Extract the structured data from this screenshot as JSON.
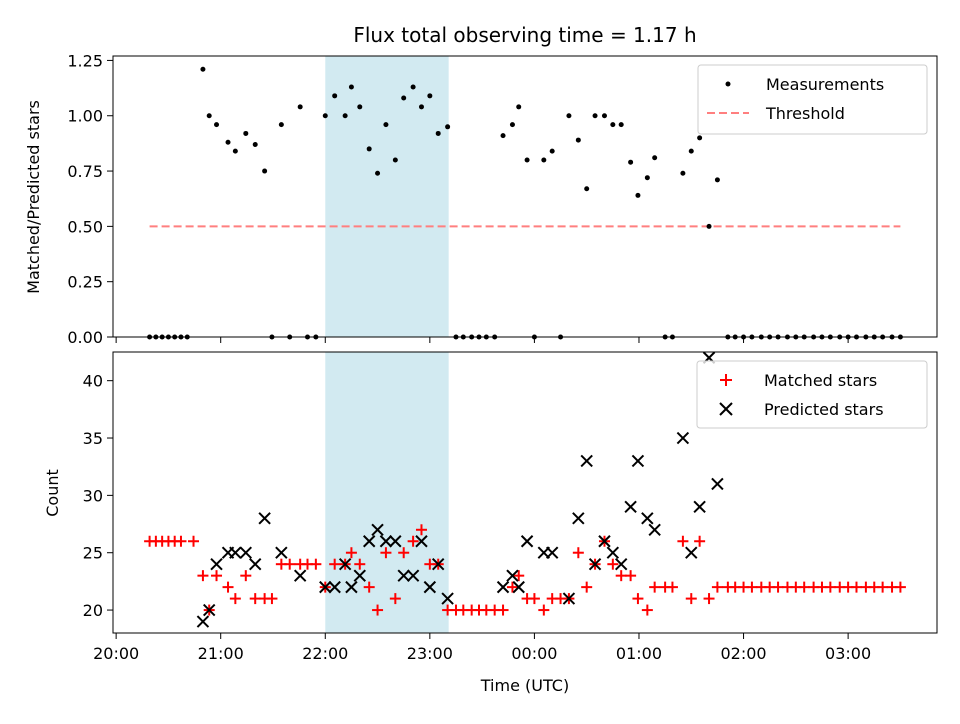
{
  "chart_data": {
    "title": "Flux total observing time = 1.17 h",
    "xlabel": "Time (UTC)",
    "x_range_hours": [
      19.97,
      27.85
    ],
    "x_ticks": [
      {
        "t": 20,
        "label": "20:00"
      },
      {
        "t": 21,
        "label": "21:00"
      },
      {
        "t": 22,
        "label": "22:00"
      },
      {
        "t": 23,
        "label": "23:00"
      },
      {
        "t": 24,
        "label": "00:00"
      },
      {
        "t": 25,
        "label": "01:00"
      },
      {
        "t": 26,
        "label": "02:00"
      },
      {
        "t": 27,
        "label": "03:00"
      }
    ],
    "highlight_span": {
      "start": 22.0,
      "end": 23.18,
      "color": "#add8e6"
    },
    "top_panel": {
      "type": "scatter",
      "ylabel": "Matched/Predicted stars",
      "ylim": [
        0,
        1.27
      ],
      "y_ticks": [
        {
          "v": 0,
          "label": "0.00"
        },
        {
          "v": 0.25,
          "label": "0.25"
        },
        {
          "v": 0.5,
          "label": "0.50"
        },
        {
          "v": 0.75,
          "label": "0.75"
        },
        {
          "v": 1.0,
          "label": "1.00"
        },
        {
          "v": 1.25,
          "label": "1.25"
        }
      ],
      "legend_position": "top-right",
      "series": [
        {
          "name": "Measurements",
          "color": "#000000",
          "points": [
            [
              20.32,
              0
            ],
            [
              20.38,
              0
            ],
            [
              20.44,
              0
            ],
            [
              20.5,
              0
            ],
            [
              20.56,
              0
            ],
            [
              20.62,
              0
            ],
            [
              20.68,
              0
            ],
            [
              20.83,
              1.21
            ],
            [
              20.89,
              1.0
            ],
            [
              20.96,
              0.96
            ],
            [
              21.07,
              0.88
            ],
            [
              21.14,
              0.84
            ],
            [
              21.24,
              0.92
            ],
            [
              21.33,
              0.87
            ],
            [
              21.42,
              0.75
            ],
            [
              21.49,
              0
            ],
            [
              21.58,
              0.96
            ],
            [
              21.66,
              0
            ],
            [
              21.76,
              1.04
            ],
            [
              21.83,
              0
            ],
            [
              21.91,
              0
            ],
            [
              22.0,
              1.0
            ],
            [
              22.09,
              1.09
            ],
            [
              22.19,
              1.0
            ],
            [
              22.25,
              1.13
            ],
            [
              22.33,
              1.04
            ],
            [
              22.42,
              0.85
            ],
            [
              22.5,
              0.74
            ],
            [
              22.58,
              0.96
            ],
            [
              22.67,
              0.8
            ],
            [
              22.75,
              1.08
            ],
            [
              22.84,
              1.13
            ],
            [
              22.92,
              1.04
            ],
            [
              23.0,
              1.09
            ],
            [
              23.08,
              0.92
            ],
            [
              23.17,
              0.95
            ],
            [
              23.25,
              0
            ],
            [
              23.32,
              0
            ],
            [
              23.4,
              0
            ],
            [
              23.47,
              0
            ],
            [
              23.54,
              0
            ],
            [
              23.62,
              0
            ],
            [
              23.7,
              0.91
            ],
            [
              23.79,
              0.96
            ],
            [
              23.85,
              1.04
            ],
            [
              23.93,
              0.8
            ],
            [
              24.0,
              0
            ],
            [
              24.09,
              0.8
            ],
            [
              24.17,
              0.84
            ],
            [
              24.25,
              0
            ],
            [
              24.33,
              1.0
            ],
            [
              24.42,
              0.89
            ],
            [
              24.5,
              0.67
            ],
            [
              24.58,
              1.0
            ],
            [
              24.67,
              1.0
            ],
            [
              24.75,
              0.96
            ],
            [
              24.83,
              0.96
            ],
            [
              24.92,
              0.79
            ],
            [
              24.99,
              0.64
            ],
            [
              25.08,
              0.72
            ],
            [
              25.15,
              0.81
            ],
            [
              25.25,
              0
            ],
            [
              25.32,
              0
            ],
            [
              25.42,
              0.74
            ],
            [
              25.5,
              0.84
            ],
            [
              25.58,
              0.9
            ],
            [
              25.67,
              0.5
            ],
            [
              25.75,
              0.71
            ],
            [
              25.85,
              0
            ],
            [
              25.92,
              0
            ],
            [
              26.0,
              0
            ],
            [
              26.08,
              0
            ],
            [
              26.17,
              0
            ],
            [
              26.25,
              0
            ],
            [
              26.33,
              0
            ],
            [
              26.42,
              0
            ],
            [
              26.5,
              0
            ],
            [
              26.58,
              0
            ],
            [
              26.67,
              0
            ],
            [
              26.75,
              0
            ],
            [
              26.83,
              0
            ],
            [
              26.92,
              0
            ],
            [
              27.0,
              0
            ],
            [
              27.08,
              0
            ],
            [
              27.17,
              0
            ],
            [
              27.25,
              0
            ],
            [
              27.33,
              0
            ],
            [
              27.42,
              0
            ],
            [
              27.5,
              0
            ]
          ]
        },
        {
          "name": "Threshold",
          "type": "line",
          "style": "dashed",
          "color": "#ff7f7f",
          "points": [
            [
              20.32,
              0.5
            ],
            [
              27.5,
              0.5
            ]
          ]
        }
      ]
    },
    "bottom_panel": {
      "type": "scatter",
      "ylabel": "Count",
      "ylim": [
        18,
        42.5
      ],
      "y_ticks": [
        {
          "v": 20,
          "label": "20"
        },
        {
          "v": 25,
          "label": "25"
        },
        {
          "v": 30,
          "label": "30"
        },
        {
          "v": 35,
          "label": "35"
        },
        {
          "v": 40,
          "label": "40"
        }
      ],
      "legend_position": "top-right",
      "series": [
        {
          "name": "Matched stars",
          "marker": "plus",
          "color": "#ff0000",
          "points": [
            [
              20.32,
              26
            ],
            [
              20.38,
              26
            ],
            [
              20.44,
              26
            ],
            [
              20.5,
              26
            ],
            [
              20.56,
              26
            ],
            [
              20.62,
              26
            ],
            [
              20.74,
              26
            ],
            [
              20.83,
              23
            ],
            [
              20.89,
              20
            ],
            [
              20.96,
              23
            ],
            [
              21.07,
              22
            ],
            [
              21.14,
              21
            ],
            [
              21.24,
              23
            ],
            [
              21.33,
              21
            ],
            [
              21.42,
              21
            ],
            [
              21.49,
              21
            ],
            [
              21.58,
              24
            ],
            [
              21.66,
              24
            ],
            [
              21.76,
              24
            ],
            [
              21.83,
              24
            ],
            [
              21.91,
              24
            ],
            [
              22.0,
              22
            ],
            [
              22.09,
              24
            ],
            [
              22.19,
              24
            ],
            [
              22.25,
              25
            ],
            [
              22.33,
              24
            ],
            [
              22.42,
              22
            ],
            [
              22.5,
              20
            ],
            [
              22.58,
              25
            ],
            [
              22.67,
              21
            ],
            [
              22.75,
              25
            ],
            [
              22.84,
              26
            ],
            [
              22.92,
              27
            ],
            [
              23.0,
              24
            ],
            [
              23.08,
              24
            ],
            [
              23.17,
              20
            ],
            [
              23.25,
              20
            ],
            [
              23.32,
              20
            ],
            [
              23.4,
              20
            ],
            [
              23.47,
              20
            ],
            [
              23.54,
              20
            ],
            [
              23.62,
              20
            ],
            [
              23.7,
              20
            ],
            [
              23.79,
              22
            ],
            [
              23.85,
              23
            ],
            [
              23.93,
              21
            ],
            [
              24.0,
              21
            ],
            [
              24.09,
              20
            ],
            [
              24.17,
              21
            ],
            [
              24.25,
              21
            ],
            [
              24.33,
              21
            ],
            [
              24.42,
              25
            ],
            [
              24.5,
              22
            ],
            [
              24.58,
              24
            ],
            [
              24.67,
              26
            ],
            [
              24.75,
              24
            ],
            [
              24.83,
              23
            ],
            [
              24.92,
              23
            ],
            [
              24.99,
              21
            ],
            [
              25.08,
              20
            ],
            [
              25.15,
              22
            ],
            [
              25.25,
              22
            ],
            [
              25.32,
              22
            ],
            [
              25.42,
              26
            ],
            [
              25.5,
              21
            ],
            [
              25.58,
              26
            ],
            [
              25.67,
              21
            ],
            [
              25.75,
              22
            ],
            [
              25.85,
              22
            ],
            [
              25.92,
              22
            ],
            [
              26.0,
              22
            ],
            [
              26.08,
              22
            ],
            [
              26.17,
              22
            ],
            [
              26.25,
              22
            ],
            [
              26.33,
              22
            ],
            [
              26.42,
              22
            ],
            [
              26.5,
              22
            ],
            [
              26.58,
              22
            ],
            [
              26.67,
              22
            ],
            [
              26.75,
              22
            ],
            [
              26.83,
              22
            ],
            [
              26.92,
              22
            ],
            [
              27.0,
              22
            ],
            [
              27.08,
              22
            ],
            [
              27.17,
              22
            ],
            [
              27.25,
              22
            ],
            [
              27.33,
              22
            ],
            [
              27.42,
              22
            ],
            [
              27.5,
              22
            ]
          ]
        },
        {
          "name": "Predicted stars",
          "marker": "x",
          "color": "#000000",
          "points": [
            [
              20.83,
              19
            ],
            [
              20.89,
              20
            ],
            [
              20.96,
              24
            ],
            [
              21.07,
              25
            ],
            [
              21.14,
              25
            ],
            [
              21.24,
              25
            ],
            [
              21.33,
              24
            ],
            [
              21.42,
              28
            ],
            [
              21.58,
              25
            ],
            [
              21.76,
              23
            ],
            [
              22.0,
              22
            ],
            [
              22.09,
              22
            ],
            [
              22.19,
              24
            ],
            [
              22.25,
              22
            ],
            [
              22.33,
              23
            ],
            [
              22.42,
              26
            ],
            [
              22.5,
              27
            ],
            [
              22.58,
              26
            ],
            [
              22.67,
              26
            ],
            [
              22.75,
              23
            ],
            [
              22.84,
              23
            ],
            [
              22.92,
              26
            ],
            [
              23.0,
              22
            ],
            [
              23.08,
              24
            ],
            [
              23.17,
              21
            ],
            [
              23.7,
              22
            ],
            [
              23.79,
              23
            ],
            [
              23.85,
              22
            ],
            [
              23.93,
              26
            ],
            [
              24.09,
              25
            ],
            [
              24.17,
              25
            ],
            [
              24.33,
              21
            ],
            [
              24.42,
              28
            ],
            [
              24.5,
              33
            ],
            [
              24.58,
              24
            ],
            [
              24.67,
              26
            ],
            [
              24.75,
              25
            ],
            [
              24.83,
              24
            ],
            [
              24.92,
              29
            ],
            [
              24.99,
              33
            ],
            [
              25.08,
              28
            ],
            [
              25.15,
              27
            ],
            [
              25.42,
              35
            ],
            [
              25.5,
              25
            ],
            [
              25.58,
              29
            ],
            [
              25.67,
              42
            ],
            [
              25.75,
              31
            ]
          ]
        }
      ]
    }
  }
}
